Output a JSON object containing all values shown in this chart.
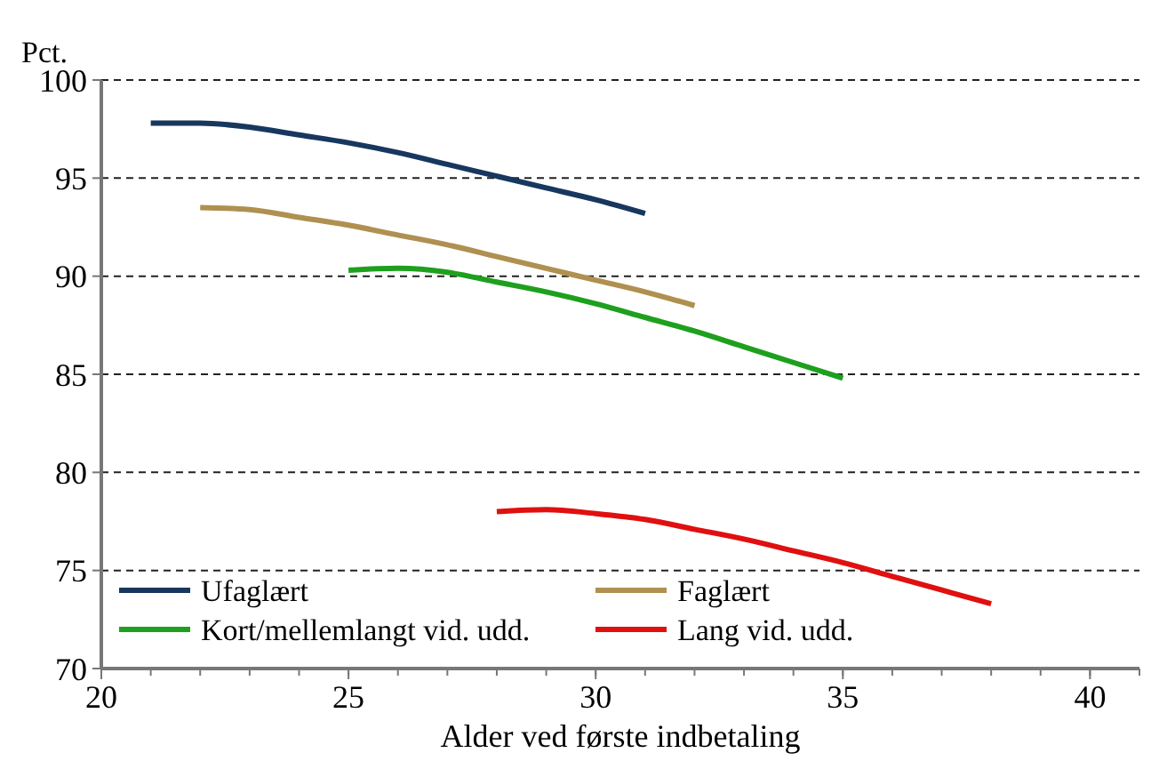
{
  "chart_data": {
    "type": "line",
    "ylabel": "Pct.",
    "xlabel": "Alder ved første indbetaling",
    "xlim": [
      20,
      41
    ],
    "xticks": [
      20,
      25,
      30,
      35,
      40
    ],
    "ylim": [
      70,
      100
    ],
    "yticks": [
      70,
      75,
      80,
      85,
      90,
      95,
      100
    ],
    "grid": "y",
    "legend": "bottom",
    "marker": "none",
    "line_style": "solid",
    "series": [
      {
        "name": "Ufaglært",
        "color": "#17375e",
        "x": [
          21,
          22,
          23,
          24,
          25,
          26,
          27,
          28,
          29,
          30,
          31
        ],
        "values": [
          97.8,
          97.8,
          97.6,
          97.2,
          96.8,
          96.3,
          95.7,
          95.1,
          94.5,
          93.9,
          93.2
        ]
      },
      {
        "name": "Faglært",
        "color": "#b09050",
        "x": [
          22,
          23,
          24,
          25,
          26,
          27,
          28,
          29,
          30,
          31,
          32
        ],
        "values": [
          93.5,
          93.4,
          93.0,
          92.6,
          92.1,
          91.6,
          91.0,
          90.4,
          89.8,
          89.2,
          88.5
        ]
      },
      {
        "name": "Kort/mellemlangt vid. udd.",
        "color": "#1ea01e",
        "x": [
          25,
          26,
          27,
          28,
          29,
          30,
          31,
          32,
          33,
          34,
          35
        ],
        "values": [
          90.3,
          90.4,
          90.2,
          89.7,
          89.2,
          88.6,
          87.9,
          87.2,
          86.4,
          85.6,
          84.8
        ]
      },
      {
        "name": "Lang vid. udd.",
        "color": "#e01010",
        "x": [
          28,
          29,
          30,
          31,
          32,
          33,
          34,
          35,
          36,
          37,
          38
        ],
        "values": [
          78.0,
          78.1,
          77.9,
          77.6,
          77.1,
          76.6,
          76.0,
          75.4,
          74.7,
          74.0,
          73.3
        ]
      }
    ]
  }
}
